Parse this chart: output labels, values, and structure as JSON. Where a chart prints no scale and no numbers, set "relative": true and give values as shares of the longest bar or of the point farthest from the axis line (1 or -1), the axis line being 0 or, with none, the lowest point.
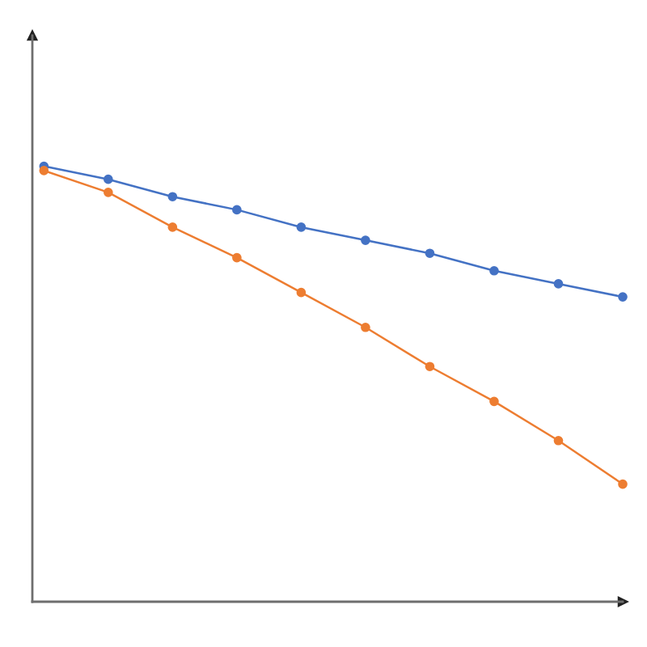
{
  "chart_data": {
    "type": "line",
    "relative": true,
    "marker": "circle",
    "line_style": "solid",
    "categories": [
      null,
      null,
      null,
      null,
      null,
      null,
      null,
      null,
      null,
      null
    ],
    "series": [
      {
        "color": "#4472c4",
        "values": [
          1,
          0.97,
          0.93,
          0.9,
          0.86,
          0.83,
          0.8,
          0.76,
          0.73,
          0.7
        ]
      },
      {
        "color": "#ed7d31",
        "values": [
          0.99,
          0.94,
          0.86,
          0.79,
          0.71,
          0.63,
          0.54,
          0.46,
          0.37,
          0.27
        ]
      }
    ]
  }
}
